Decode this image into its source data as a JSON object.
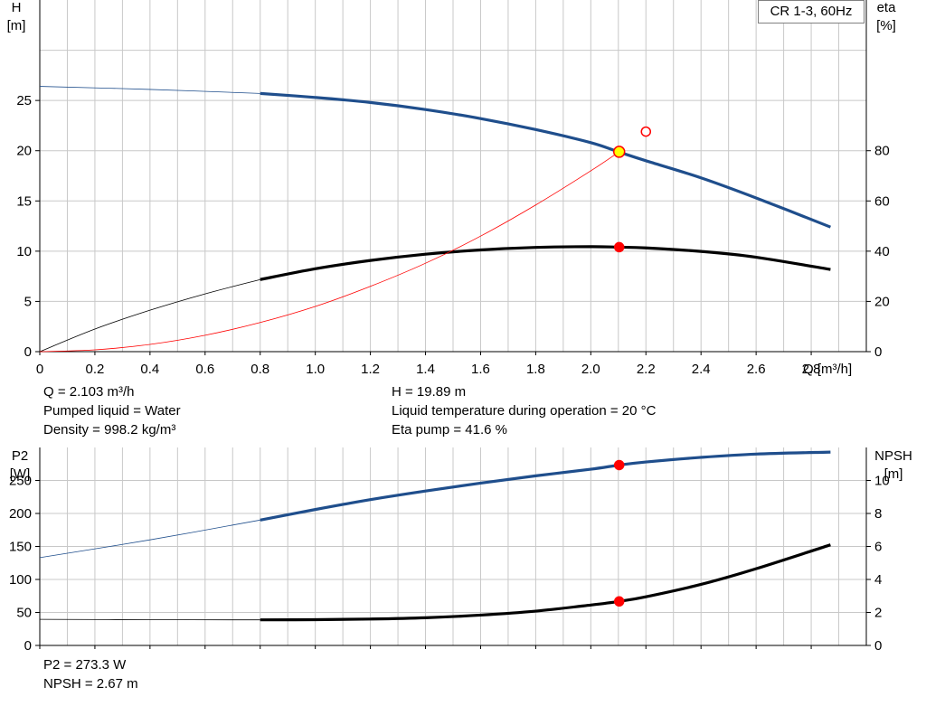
{
  "model_label": "CR 1-3, 60Hz",
  "top_info": {
    "q": "Q = 2.103 m³/h",
    "liquid": "Pumped liquid = Water",
    "density": "Density = 998.2 kg/m³",
    "h": "H = 19.89 m",
    "temperature": "Liquid temperature during operation = 20 °C",
    "eta": "Eta pump = 41.6 %"
  },
  "bottom_info": {
    "p2": "P2 = 273.3 W",
    "npsh": "NPSH = 2.67 m"
  },
  "colors": {
    "blue": "#1f4e8c",
    "black": "#000000",
    "red": "#ff0000",
    "marker_yellow": "#ffff00",
    "grid": "#c8c8c8"
  },
  "chart_data": [
    {
      "type": "line",
      "x_axis": {
        "label": "Q [m³/h]",
        "range": [
          0,
          3.0
        ],
        "ticks": [
          0,
          0.2,
          0.4,
          0.6,
          0.8,
          1.0,
          1.2,
          1.4,
          1.6,
          1.8,
          2.0,
          2.2,
          2.4,
          2.6,
          2.8
        ]
      },
      "left_axis": {
        "label_top": "H",
        "label_unit": "[m]",
        "range": [
          0,
          35
        ],
        "ticks": [
          0,
          5,
          10,
          15,
          20,
          25
        ]
      },
      "right_axis": {
        "label_top": "eta",
        "label_unit": "[%]",
        "range": [
          0,
          140
        ],
        "ticks": [
          0,
          20,
          40,
          60,
          80
        ]
      },
      "grid": true,
      "series": [
        {
          "id": "h-curve",
          "axis": "left",
          "color": "#1f4e8c",
          "x": [
            0,
            0.4,
            0.8,
            1.0,
            1.2,
            1.4,
            1.6,
            1.8,
            2.0,
            2.1,
            2.2,
            2.4,
            2.6,
            2.87
          ],
          "y": [
            26.4,
            26.1,
            25.7,
            25.3,
            24.8,
            24.1,
            23.2,
            22.1,
            20.8,
            19.89,
            19.0,
            17.3,
            15.3,
            12.4
          ],
          "thin_until_x": 0.8
        },
        {
          "id": "eta-curve",
          "axis": "right",
          "color": "#000000",
          "x": [
            0,
            0.2,
            0.4,
            0.6,
            0.8,
            1.0,
            1.2,
            1.4,
            1.6,
            1.8,
            2.0,
            2.103,
            2.2,
            2.4,
            2.6,
            2.87
          ],
          "y": [
            0,
            9,
            16.5,
            23,
            28.7,
            33,
            36.3,
            38.8,
            40.5,
            41.5,
            41.8,
            41.6,
            41.3,
            39.9,
            37.6,
            32.7
          ],
          "thin_until_x": 0.8
        },
        {
          "id": "system-curve",
          "axis": "left",
          "color": "#ff0000",
          "x": [
            0,
            0.2,
            0.4,
            0.6,
            0.8,
            1.0,
            1.2,
            1.4,
            1.6,
            1.8,
            2.0,
            2.103
          ],
          "y": [
            0,
            0.18,
            0.72,
            1.63,
            2.9,
            4.5,
            6.5,
            8.8,
            11.5,
            14.6,
            18.0,
            19.89
          ],
          "thin_until_x": 3.0
        }
      ],
      "markers": [
        {
          "id": "duty-point",
          "axis": "left",
          "x": 2.103,
          "y": 19.89,
          "fill": "#ffff00",
          "stroke": "#ff0000",
          "r": 6
        },
        {
          "id": "eta-point",
          "axis": "right",
          "x": 2.103,
          "y": 41.6,
          "fill": "#ff0000",
          "stroke": "#ff0000",
          "r": 5
        },
        {
          "id": "max-point",
          "axis": "left",
          "x": 2.2,
          "y": 21.9,
          "fill": "#ffffff",
          "stroke": "#ff0000",
          "r": 5
        }
      ]
    },
    {
      "type": "line",
      "x_axis": {
        "label": "",
        "range": [
          0,
          3.0
        ],
        "ticks": [
          0,
          0.2,
          0.4,
          0.6,
          0.8,
          1.0,
          1.2,
          1.4,
          1.6,
          1.8,
          2.0,
          2.2,
          2.4,
          2.6,
          2.8
        ]
      },
      "left_axis": {
        "label_top": "P2",
        "label_unit": "[W]",
        "range": [
          0,
          300
        ],
        "ticks": [
          0,
          50,
          100,
          150,
          200,
          250
        ]
      },
      "right_axis": {
        "label_top": "NPSH",
        "label_unit": "[m]",
        "range": [
          0,
          12
        ],
        "ticks": [
          0,
          2,
          4,
          6,
          8,
          10
        ]
      },
      "grid": true,
      "series": [
        {
          "id": "p2-curve",
          "axis": "left",
          "color": "#1f4e8c",
          "x": [
            0,
            0.4,
            0.8,
            1.0,
            1.2,
            1.4,
            1.6,
            1.8,
            2.0,
            2.103,
            2.2,
            2.4,
            2.6,
            2.87
          ],
          "y": [
            133,
            160,
            190,
            206,
            221,
            234,
            246,
            257,
            267,
            273.3,
            278,
            285,
            290,
            293
          ],
          "thin_until_x": 0.8
        },
        {
          "id": "npsh-curve",
          "axis": "right",
          "color": "#000000",
          "x": [
            0,
            0.4,
            0.8,
            1.0,
            1.2,
            1.4,
            1.6,
            1.8,
            2.0,
            2.103,
            2.2,
            2.4,
            2.6,
            2.87
          ],
          "y": [
            1.58,
            1.56,
            1.55,
            1.56,
            1.6,
            1.68,
            1.84,
            2.08,
            2.45,
            2.67,
            2.95,
            3.7,
            4.65,
            6.1
          ],
          "thin_until_x": 0.8
        }
      ],
      "markers": [
        {
          "id": "p2-point",
          "axis": "left",
          "x": 2.103,
          "y": 273.3,
          "fill": "#ff0000",
          "stroke": "#ff0000",
          "r": 5
        },
        {
          "id": "npsh-point",
          "axis": "right",
          "x": 2.103,
          "y": 2.67,
          "fill": "#ff0000",
          "stroke": "#ff0000",
          "r": 5
        }
      ]
    }
  ]
}
